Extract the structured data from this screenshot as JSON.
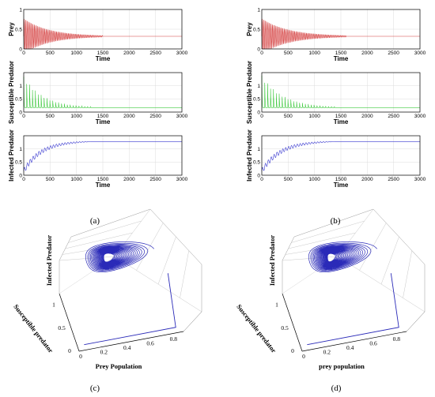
{
  "captions": {
    "a": "(a)",
    "b": "(b)",
    "c": "(c)",
    "d": "(d)"
  },
  "chart_data": [
    {
      "type": "line",
      "panel": "a",
      "subplots": [
        {
          "ylabel": "Prey",
          "xlabel": "Time",
          "xlim": [
            0,
            3000
          ],
          "ylim": [
            0,
            1
          ],
          "yticks": [
            0,
            0.5,
            1
          ],
          "xticks": [
            0,
            500,
            1000,
            1500,
            2000,
            2500,
            3000
          ],
          "color": "#d43c3c",
          "grid": true,
          "series": {
            "mode": "damped",
            "start": 0.5,
            "amp": 0.45,
            "final": 0.32,
            "decay_end": 1500
          }
        },
        {
          "ylabel": "Susceptible Predator",
          "xlabel": "Time",
          "xlim": [
            0,
            3000
          ],
          "ylim": [
            0,
            1.5
          ],
          "yticks": [
            0,
            0.5,
            1
          ],
          "xticks": [
            0,
            500,
            1000,
            1500,
            2000,
            2500,
            3000
          ],
          "color": "#3fc93f",
          "grid": true,
          "series": {
            "mode": "spiky",
            "start": 0.6,
            "amp": 1.3,
            "final": 0.17,
            "decay_end": 1300
          }
        },
        {
          "ylabel": "Infected Predator",
          "xlabel": "Time",
          "xlim": [
            0,
            3000
          ],
          "ylim": [
            0,
            1.5
          ],
          "yticks": [
            0,
            0.5,
            1
          ],
          "xticks": [
            0,
            500,
            1000,
            1500,
            2000,
            2500,
            3000
          ],
          "color": "#3a3ad0",
          "grid": true,
          "series": {
            "mode": "rising",
            "start": 0.15,
            "amp": 0.1,
            "final": 1.3,
            "decay_end": 1300
          }
        }
      ]
    },
    {
      "type": "line",
      "panel": "b",
      "subplots": [
        {
          "ylabel": "Prey",
          "xlabel": "Time",
          "xlim": [
            0,
            3000
          ],
          "ylim": [
            0,
            1
          ],
          "yticks": [
            0,
            0.5,
            1
          ],
          "xticks": [
            0,
            500,
            1000,
            1500,
            2000,
            2500,
            3000
          ],
          "color": "#d43c3c",
          "grid": true,
          "series": {
            "mode": "damped",
            "start": 0.5,
            "amp": 0.45,
            "final": 0.32,
            "decay_end": 1600
          }
        },
        {
          "ylabel": "Susceptible Predator",
          "xlabel": "Time",
          "xlim": [
            0,
            3000
          ],
          "ylim": [
            0,
            1.5
          ],
          "yticks": [
            0,
            0.5,
            1
          ],
          "xticks": [
            0,
            500,
            1000,
            1500,
            2000,
            2500,
            3000
          ],
          "color": "#3fc93f",
          "grid": true,
          "series": {
            "mode": "spiky",
            "start": 0.6,
            "amp": 1.35,
            "final": 0.17,
            "decay_end": 1400
          }
        },
        {
          "ylabel": "Infected Predator",
          "xlabel": "Time",
          "xlim": [
            0,
            3000
          ],
          "ylim": [
            0,
            1.5
          ],
          "yticks": [
            0,
            0.5,
            1
          ],
          "xticks": [
            0,
            500,
            1000,
            1500,
            2000,
            2500,
            3000
          ],
          "color": "#3a3ad0",
          "grid": true,
          "series": {
            "mode": "rising",
            "start": 0.15,
            "amp": 0.1,
            "final": 1.3,
            "decay_end": 1400
          }
        }
      ]
    },
    {
      "type": "line",
      "panel": "c",
      "projection": "3d",
      "xlabel": "Prey Population",
      "ylabel": "Susceptible predator",
      "zlabel": "Infected Predator",
      "xticks": [
        0,
        0.2,
        0.4,
        0.6,
        0.8
      ],
      "yticks": [
        0,
        0.5,
        1
      ],
      "color": "#2a2ab8",
      "spiral": {
        "loops": 22,
        "center": [
          0.35,
          0.25
        ],
        "r_outer": [
          0.3,
          0.25
        ],
        "r_inner": [
          0.04,
          0.02
        ]
      }
    },
    {
      "type": "line",
      "panel": "d",
      "projection": "3d",
      "xlabel": "prey population",
      "ylabel": "Susceptible predator",
      "zlabel": "Infected Predator",
      "xticks": [
        0,
        0.2,
        0.4,
        0.6,
        0.8
      ],
      "yticks": [
        0,
        0.5,
        1
      ],
      "color": "#2a2ab8",
      "spiral": {
        "loops": 24,
        "center": [
          0.35,
          0.25
        ],
        "r_outer": [
          0.3,
          0.25
        ],
        "r_inner": [
          0.03,
          0.015
        ]
      }
    }
  ]
}
